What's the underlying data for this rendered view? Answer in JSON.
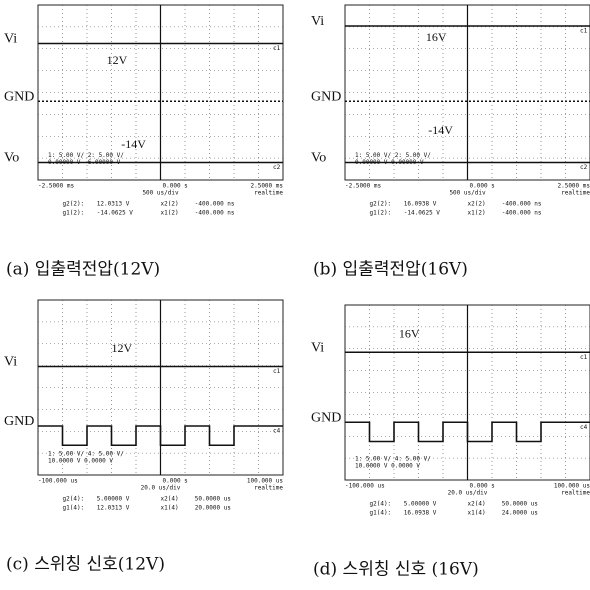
{
  "panels": [
    {
      "signals": [
        "Vi",
        "GND",
        "Vo"
      ],
      "annotations": [
        "12V",
        "-14V"
      ],
      "markers": [
        "c1",
        "c2"
      ],
      "channel_readout": [
        "1: 5.00 V/  2: 5.00 V/",
        "0.00000 V  -6.00000 V"
      ],
      "time_axis": {
        "left": "-2.5000 ms",
        "center": "0.000 s",
        "right": "2.5000 ms",
        "scale": "500 us/div",
        "mode": "realtime"
      },
      "measurements": [
        [
          "g2(2):",
          "12.0313 V",
          "x2(2)",
          "-400.000 ns"
        ],
        [
          "g1(2):",
          "-14.0625 V",
          "x1(2)",
          "-400.000 ns"
        ]
      ],
      "caption": "(a) 입출력전압(12V)"
    },
    {
      "signals": [
        "Vi",
        "GND",
        "Vo"
      ],
      "annotations": [
        "16V",
        "-14V"
      ],
      "markers": [
        "c1",
        "c2"
      ],
      "channel_readout": [
        "1: 5.00 V/  2: 5.00 V/",
        "0.00000 V  0.00000 V"
      ],
      "time_axis": {
        "left": "-2.5000 ms",
        "center": "0.000 s",
        "right": "2.5000 ms",
        "scale": "500 us/div",
        "mode": "realtime"
      },
      "measurements": [
        [
          "g2(2):",
          "16.0938 V",
          "x2(2)",
          "-400.000 ns"
        ],
        [
          "g1(2):",
          "-14.0625 V",
          "x1(2)",
          "-400.000 ns"
        ]
      ],
      "caption": "(b) 입출력전압(16V)"
    },
    {
      "signals": [
        "Vi",
        "GND"
      ],
      "annotations": [
        "12V"
      ],
      "markers": [
        "c1",
        "c4"
      ],
      "channel_readout": [
        "1: 5.00 V/  4: 5.00 V/",
        "10.0000 V  0.0000 V"
      ],
      "time_axis": {
        "left": "-100.000 us",
        "center": "0.000 s",
        "right": "100.000 us",
        "scale": "20.0 us/div",
        "mode": "realtime"
      },
      "measurements": [
        [
          "g2(4):",
          "5.00000 V",
          "x2(4)",
          "50.0000 us"
        ],
        [
          "g1(4):",
          "12.0313 V",
          "x1(4)",
          "20.0000 us"
        ]
      ],
      "caption": "(c) 스위칭 신호(12V)"
    },
    {
      "signals": [
        "Vi",
        "GND"
      ],
      "annotations": [
        "16V"
      ],
      "markers": [
        "c1",
        "c4"
      ],
      "channel_readout": [
        "1: 5.00 V/  4: 5.00 V/",
        "10.0000 V  0.0000 V"
      ],
      "time_axis": {
        "left": "-100.000 us",
        "center": "0.000 s",
        "right": "100.000 us",
        "scale": "20.0 us/div",
        "mode": "realtime"
      },
      "measurements": [
        [
          "g2(4):",
          "5.00000 V",
          "x2(4)",
          "50.0000 us"
        ],
        [
          "g1(4):",
          "16.0938 V",
          "x1(4)",
          "24.0000 us"
        ]
      ],
      "caption": "(d) 스위칭 신호 (16V)"
    }
  ]
}
